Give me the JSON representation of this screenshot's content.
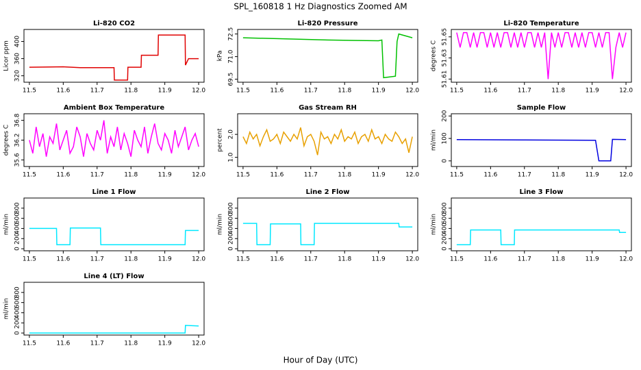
{
  "title": "SPL_160818  1 Hz Diagnostics Zoomed AM",
  "xlabel": "Hour of Day (UTC)",
  "chart_data": [
    {
      "type": "line",
      "title": "Li-820 CO2",
      "ylabel": "Licor ppm",
      "color": "#e00000",
      "x": [
        11.5,
        11.6,
        11.65,
        11.75,
        11.751,
        11.79,
        11.791,
        11.83,
        11.831,
        11.88,
        11.881,
        11.96,
        11.961,
        11.97,
        12.0
      ],
      "values": [
        340,
        341,
        339,
        339,
        310,
        310,
        340,
        340,
        368,
        368,
        415,
        415,
        345,
        360,
        360
      ],
      "xlim": [
        11.484,
        12.016
      ],
      "xticks": [
        11.5,
        11.6,
        11.7,
        11.8,
        11.9,
        {
          "value": 12,
          "label": "12.0"
        }
      ],
      "ylim": [
        305,
        428
      ],
      "yticks": [
        320,
        360,
        400
      ]
    },
    {
      "type": "line",
      "title": "Li-820 Pressure",
      "ylabel": "kPa",
      "color": "#00c000",
      "x": [
        11.5,
        11.75,
        11.9,
        11.91,
        11.915,
        11.95,
        11.955,
        11.96,
        12.0
      ],
      "values": [
        72.25,
        72.1,
        72.05,
        72.1,
        69.6,
        69.7,
        72.0,
        72.5,
        72.25
      ],
      "xlim": [
        11.484,
        12.016
      ],
      "xticks": [
        11.5,
        11.6,
        11.7,
        11.8,
        11.9,
        {
          "value": 12,
          "label": "12.0"
        }
      ],
      "ylim": [
        69.3,
        72.8
      ],
      "yticks": [
        69.5,
        {
          "value": 71,
          "label": "71.0"
        },
        72.5
      ]
    },
    {
      "type": "line",
      "title": "Li-820 Temperature",
      "ylabel": "degrees C",
      "color": "#ff00ff",
      "x": [
        11.5,
        11.51,
        11.52,
        11.53,
        11.54,
        11.55,
        11.56,
        11.57,
        11.58,
        11.59,
        11.6,
        11.61,
        11.62,
        11.63,
        11.64,
        11.65,
        11.66,
        11.67,
        11.68,
        11.69,
        11.7,
        11.71,
        11.72,
        11.73,
        11.74,
        11.75,
        11.76,
        11.77,
        11.78,
        11.79,
        11.8,
        11.81,
        11.82,
        11.83,
        11.84,
        11.85,
        11.86,
        11.87,
        11.88,
        11.89,
        11.9,
        11.91,
        11.92,
        11.93,
        11.94,
        11.95,
        11.96,
        11.97,
        11.98,
        11.99,
        12.0
      ],
      "values": [
        51.654,
        51.64,
        51.654,
        51.654,
        51.64,
        51.654,
        51.64,
        51.654,
        51.654,
        51.64,
        51.654,
        51.64,
        51.654,
        51.64,
        51.654,
        51.654,
        51.64,
        51.654,
        51.64,
        51.654,
        51.64,
        51.654,
        51.654,
        51.64,
        51.654,
        51.64,
        51.654,
        51.61,
        51.654,
        51.64,
        51.654,
        51.64,
        51.654,
        51.654,
        51.64,
        51.654,
        51.64,
        51.654,
        51.64,
        51.654,
        51.654,
        51.64,
        51.654,
        51.64,
        51.654,
        51.654,
        51.61,
        51.64,
        51.654,
        51.64,
        51.654
      ],
      "xlim": [
        11.484,
        12.016
      ],
      "xticks": [
        11.5,
        11.6,
        11.7,
        11.8,
        11.9,
        {
          "value": 12,
          "label": "12.0"
        }
      ],
      "ylim": [
        51.607,
        51.657
      ],
      "yticks": [
        51.61,
        51.63,
        51.65
      ]
    },
    {
      "type": "line",
      "title": "Ambient Box Temperature",
      "ylabel": "degrees C",
      "color": "#ff00ff",
      "x": [
        11.5,
        11.51,
        11.52,
        11.53,
        11.54,
        11.55,
        11.56,
        11.57,
        11.58,
        11.59,
        11.6,
        11.61,
        11.62,
        11.63,
        11.64,
        11.65,
        11.66,
        11.67,
        11.68,
        11.69,
        11.7,
        11.71,
        11.72,
        11.73,
        11.74,
        11.75,
        11.76,
        11.77,
        11.78,
        11.79,
        11.8,
        11.81,
        11.82,
        11.83,
        11.84,
        11.85,
        11.86,
        11.87,
        11.88,
        11.89,
        11.9,
        11.91,
        11.92,
        11.93,
        11.94,
        11.95,
        11.96,
        11.97,
        11.98,
        11.99,
        12.0
      ],
      "values": [
        36.2,
        35.8,
        36.6,
        36.0,
        36.4,
        35.7,
        36.3,
        36.1,
        36.7,
        35.9,
        36.2,
        36.5,
        35.8,
        36.0,
        36.6,
        36.3,
        35.7,
        36.4,
        36.1,
        35.9,
        36.5,
        36.2,
        36.8,
        35.8,
        36.3,
        36.0,
        36.6,
        35.9,
        36.4,
        36.1,
        35.7,
        36.5,
        36.2,
        36.0,
        36.6,
        35.8,
        36.3,
        36.7,
        36.1,
        35.9,
        36.4,
        36.2,
        35.8,
        36.5,
        36.0,
        36.3,
        36.6,
        35.9,
        36.2,
        36.4,
        36.0
      ],
      "xlim": [
        11.484,
        12.016
      ],
      "xticks": [
        11.5,
        11.6,
        11.7,
        11.8,
        11.9,
        {
          "value": 12,
          "label": "12.0"
        }
      ],
      "ylim": [
        35.4,
        37.0
      ],
      "yticks": [
        35.6,
        36.2,
        36.8
      ]
    },
    {
      "type": "line",
      "title": "Gas Stream RH",
      "ylabel": "percent",
      "color": "#e8a000",
      "x": [
        11.5,
        11.51,
        11.52,
        11.53,
        11.54,
        11.55,
        11.56,
        11.57,
        11.58,
        11.59,
        11.6,
        11.61,
        11.62,
        11.63,
        11.64,
        11.65,
        11.66,
        11.67,
        11.68,
        11.69,
        11.7,
        11.71,
        11.72,
        11.73,
        11.74,
        11.75,
        11.76,
        11.77,
        11.78,
        11.79,
        11.8,
        11.81,
        11.82,
        11.83,
        11.84,
        11.85,
        11.86,
        11.87,
        11.88,
        11.89,
        11.9,
        11.91,
        11.92,
        11.93,
        11.94,
        11.95,
        11.96,
        11.97,
        11.98,
        11.99,
        12.0
      ],
      "values": [
        1.9,
        1.6,
        2.1,
        1.8,
        2.0,
        1.5,
        1.9,
        2.2,
        1.7,
        1.8,
        2.0,
        1.6,
        2.1,
        1.9,
        1.7,
        2.0,
        1.8,
        2.3,
        1.5,
        1.9,
        2.0,
        1.7,
        1.1,
        2.1,
        1.8,
        1.9,
        1.6,
        2.0,
        1.8,
        2.2,
        1.7,
        1.9,
        1.8,
        2.1,
        1.6,
        1.9,
        2.0,
        1.7,
        2.2,
        1.8,
        1.9,
        1.6,
        2.0,
        1.8,
        1.7,
        2.1,
        1.9,
        1.6,
        1.8,
        1.2,
        1.9
      ],
      "xlim": [
        11.484,
        12.016
      ],
      "xticks": [
        11.5,
        11.6,
        11.7,
        11.8,
        11.9,
        {
          "value": 12,
          "label": "12.0"
        }
      ],
      "ylim": [
        0.6,
        2.9
      ],
      "yticks": [
        {
          "value": 1,
          "label": "1.0"
        },
        {
          "value": 2,
          "label": "2.0"
        }
      ]
    },
    {
      "type": "line",
      "title": "Sample Flow",
      "ylabel": "ml/min",
      "color": "#0000e0",
      "x": [
        11.5,
        11.7,
        11.91,
        11.92,
        11.955,
        11.96,
        12.0
      ],
      "values": [
        95,
        93,
        92,
        0,
        0,
        96,
        95
      ],
      "xlim": [
        11.484,
        12.016
      ],
      "xticks": [
        11.5,
        11.6,
        11.7,
        11.8,
        11.9,
        {
          "value": 12,
          "label": "12.0"
        }
      ],
      "ylim": [
        -25,
        210
      ],
      "yticks": [
        0,
        100,
        200
      ]
    },
    {
      "type": "line",
      "title": "Line 1 Flow",
      "ylabel": "ml/min",
      "color": "#00e8ff",
      "x": [
        11.5,
        11.58,
        11.581,
        11.62,
        11.621,
        11.71,
        11.711,
        11.96,
        11.961,
        12.0
      ],
      "values": [
        400,
        400,
        80,
        80,
        410,
        410,
        80,
        80,
        360,
        360
      ],
      "xlim": [
        11.484,
        12.016
      ],
      "xticks": [
        11.5,
        11.6,
        11.7,
        11.8,
        11.9,
        {
          "value": 12,
          "label": "12.0"
        }
      ],
      "ylim": [
        -40,
        1000
      ],
      "yticks": [
        0,
        200,
        400,
        600,
        800
      ]
    },
    {
      "type": "line",
      "title": "Line 2 Flow",
      "ylabel": "ml/min",
      "color": "#00e8ff",
      "x": [
        11.5,
        11.54,
        11.541,
        11.58,
        11.581,
        11.67,
        11.671,
        11.71,
        11.711,
        11.96,
        11.961,
        12.0
      ],
      "values": [
        500,
        500,
        80,
        80,
        490,
        490,
        80,
        80,
        500,
        500,
        430,
        430
      ],
      "xlim": [
        11.484,
        12.016
      ],
      "xticks": [
        11.5,
        11.6,
        11.7,
        11.8,
        11.9,
        {
          "value": 12,
          "label": "12.0"
        }
      ],
      "ylim": [
        -40,
        1000
      ],
      "yticks": [
        0,
        200,
        400,
        600,
        800
      ]
    },
    {
      "type": "line",
      "title": "Line 3 Flow",
      "ylabel": "ml/min",
      "color": "#00e8ff",
      "x": [
        11.5,
        11.54,
        11.541,
        11.63,
        11.631,
        11.67,
        11.671,
        11.98,
        11.981,
        12.0
      ],
      "values": [
        80,
        80,
        370,
        370,
        80,
        80,
        370,
        370,
        320,
        320
      ],
      "xlim": [
        11.484,
        12.016
      ],
      "xticks": [
        11.5,
        11.6,
        11.7,
        11.8,
        11.9,
        {
          "value": 12,
          "label": "12.0"
        }
      ],
      "ylim": [
        -40,
        1000
      ],
      "yticks": [
        0,
        200,
        400,
        600,
        800
      ]
    },
    {
      "type": "line",
      "title": "Line 4 (LT) Flow",
      "ylabel": "ml/min",
      "color": "#00e8ff",
      "x": [
        11.5,
        11.96,
        11.961,
        12.0
      ],
      "values": [
        0,
        0,
        150,
        140
      ],
      "xlim": [
        11.484,
        12.016
      ],
      "xticks": [
        11.5,
        11.6,
        11.7,
        11.8,
        11.9,
        {
          "value": 12,
          "label": "12.0"
        }
      ],
      "ylim": [
        -40,
        1000
      ],
      "yticks": [
        0,
        200,
        400,
        600,
        800
      ]
    }
  ]
}
